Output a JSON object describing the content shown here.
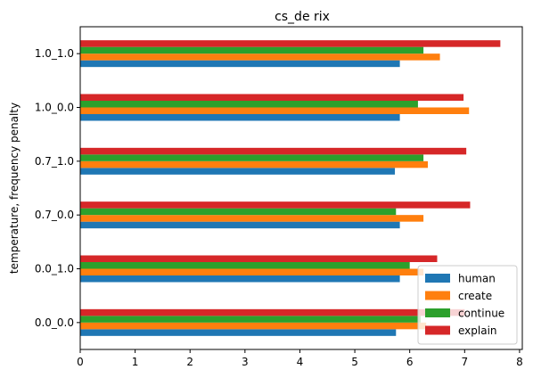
{
  "chart_data": {
    "type": "bar",
    "orientation": "horizontal",
    "title": "cs_de rix",
    "xlabel": "",
    "ylabel": "temperature, frequency penalty",
    "categories": [
      "0.0_0.0",
      "0.0_1.0",
      "0.7_0.0",
      "0.7_1.0",
      "1.0_0.0",
      "1.0_1.0"
    ],
    "series": [
      {
        "name": "human",
        "color": "#1f77b4",
        "values": [
          5.75,
          5.82,
          5.82,
          5.73,
          5.82,
          5.82
        ]
      },
      {
        "name": "create",
        "color": "#ff7f0e",
        "values": [
          6.3,
          6.25,
          6.25,
          6.33,
          7.08,
          6.55
        ]
      },
      {
        "name": "continue",
        "color": "#2ca02c",
        "values": [
          6.2,
          6.0,
          5.75,
          6.25,
          6.15,
          6.25
        ]
      },
      {
        "name": "explain",
        "color": "#d62728",
        "values": [
          7.0,
          6.5,
          7.1,
          7.03,
          6.98,
          7.65
        ]
      }
    ],
    "xlim": [
      0,
      8.05
    ],
    "xticks": [
      0,
      1,
      2,
      3,
      4,
      5,
      6,
      7,
      8
    ],
    "grid": false,
    "legend_position": "lower-right"
  }
}
